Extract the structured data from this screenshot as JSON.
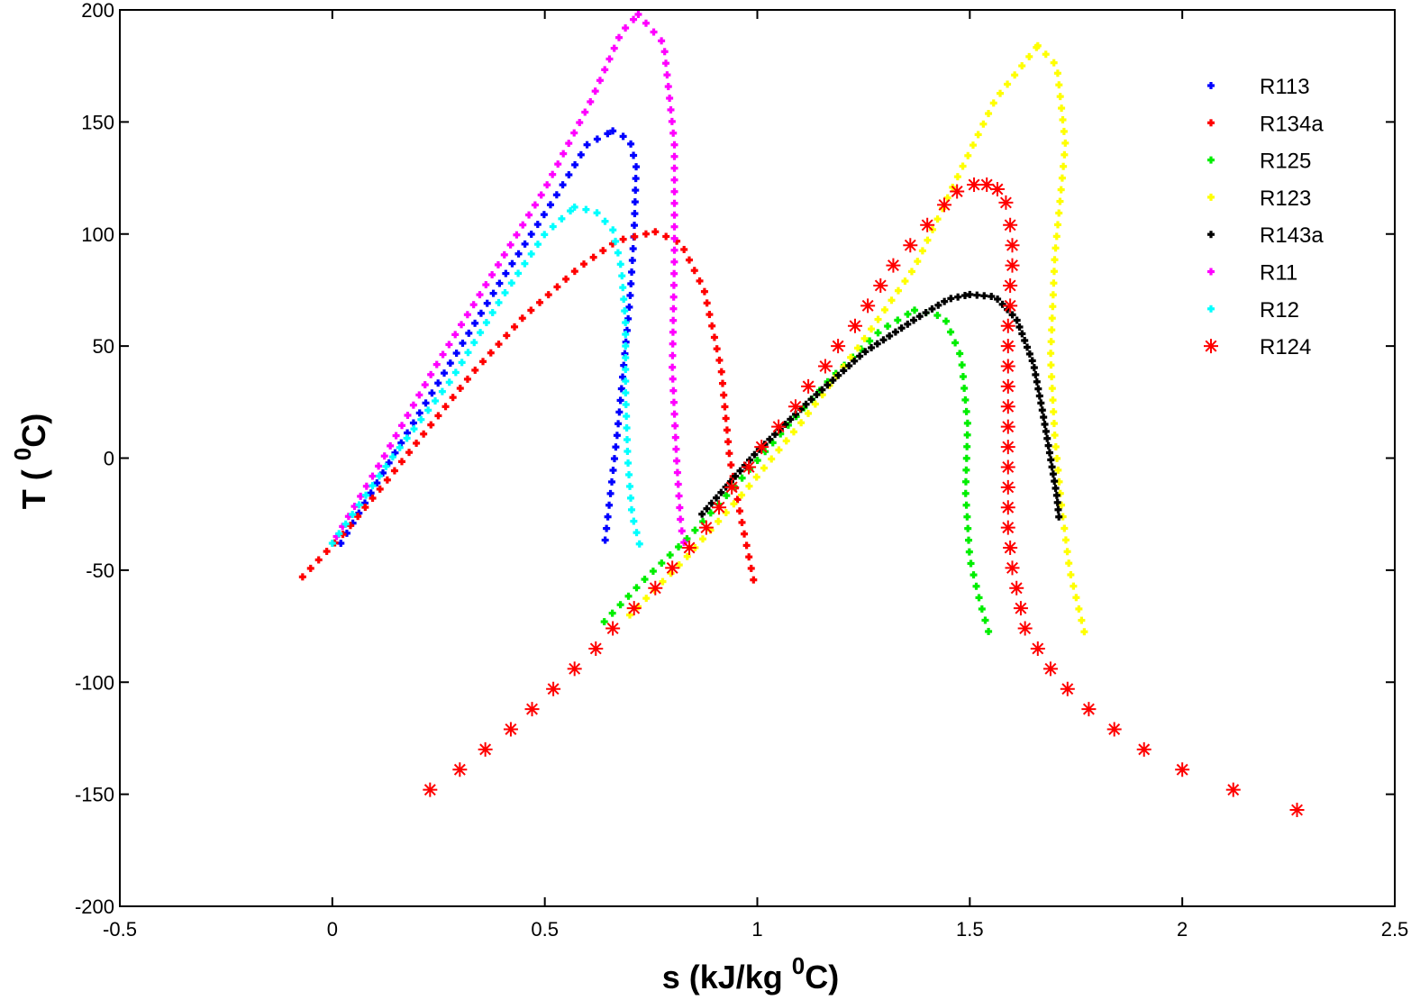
{
  "chart_data": {
    "type": "scatter",
    "title": "",
    "xlabel": "s (kJ/kg ⁰C)",
    "ylabel": "T ( ⁰C)",
    "xlabel_parts": {
      "pre": "s (kJ/kg ",
      "sup": "0",
      "post": "C)"
    },
    "ylabel_parts": {
      "pre": "T ( ",
      "sup": "0",
      "post": "C)"
    },
    "xlim": [
      -0.5,
      2.5
    ],
    "ylim": [
      -200,
      200
    ],
    "xticks": [
      -0.5,
      0,
      0.5,
      1,
      1.5,
      2,
      2.5
    ],
    "xtick_labels": [
      "-0.5",
      "0",
      "0.5",
      "1",
      "1.5",
      "2",
      "2.5"
    ],
    "yticks": [
      -200,
      -150,
      -100,
      -50,
      0,
      50,
      100,
      150,
      200
    ],
    "ytick_labels": [
      "-200",
      "-150",
      "-100",
      "-50",
      "0",
      "50",
      "100",
      "150",
      "200"
    ],
    "grid": false,
    "legend_position": "top-right",
    "series": [
      {
        "name": "R113",
        "color": "#0000ff",
        "marker": "dot",
        "liquid": [
          [
            0.02,
            -38
          ],
          [
            0.14,
            0
          ],
          [
            0.27,
            40
          ],
          [
            0.4,
            80
          ],
          [
            0.52,
            115
          ],
          [
            0.6,
            140
          ],
          [
            0.66,
            146
          ]
        ],
        "vapor": [
          [
            0.66,
            146
          ],
          [
            0.7,
            142
          ],
          [
            0.715,
            130
          ],
          [
            0.71,
            100
          ],
          [
            0.7,
            70
          ],
          [
            0.685,
            40
          ],
          [
            0.67,
            10
          ],
          [
            0.655,
            -15
          ],
          [
            0.64,
            -40
          ]
        ]
      },
      {
        "name": "R134a",
        "color": "#ff0000",
        "marker": "dot",
        "liquid": [
          [
            -0.07,
            -53
          ],
          [
            0.03,
            -33
          ],
          [
            0.12,
            -12
          ],
          [
            0.22,
            12
          ],
          [
            0.33,
            38
          ],
          [
            0.45,
            63
          ],
          [
            0.58,
            85
          ],
          [
            0.67,
            97
          ],
          [
            0.76,
            101
          ]
        ],
        "vapor": [
          [
            0.76,
            101
          ],
          [
            0.82,
            96
          ],
          [
            0.875,
            75
          ],
          [
            0.915,
            40
          ],
          [
            0.935,
            0
          ],
          [
            0.96,
            -25
          ],
          [
            0.995,
            -58
          ]
        ]
      },
      {
        "name": "R125",
        "color": "#00ee00",
        "marker": "dot",
        "liquid": [
          [
            0.64,
            -73
          ],
          [
            0.73,
            -55
          ],
          [
            0.84,
            -35
          ],
          [
            0.95,
            -12
          ],
          [
            1.06,
            12
          ],
          [
            1.17,
            35
          ],
          [
            1.29,
            57
          ],
          [
            1.37,
            66
          ]
        ],
        "vapor": [
          [
            1.37,
            66
          ],
          [
            1.44,
            63
          ],
          [
            1.48,
            45
          ],
          [
            1.495,
            15
          ],
          [
            1.49,
            -15
          ],
          [
            1.5,
            -45
          ],
          [
            1.525,
            -65
          ],
          [
            1.545,
            -78
          ]
        ]
      },
      {
        "name": "R123",
        "color": "#ffff00",
        "marker": "dot",
        "liquid": [
          [
            0.7,
            -70
          ],
          [
            0.83,
            -45
          ],
          [
            0.97,
            -15
          ],
          [
            1.1,
            15
          ],
          [
            1.24,
            50
          ],
          [
            1.37,
            85
          ],
          [
            1.47,
            125
          ],
          [
            1.56,
            160
          ],
          [
            1.66,
            184
          ]
        ],
        "vapor": [
          [
            1.66,
            184
          ],
          [
            1.705,
            175
          ],
          [
            1.725,
            140
          ],
          [
            1.7,
            90
          ],
          [
            1.69,
            45
          ],
          [
            1.7,
            10
          ],
          [
            1.715,
            -20
          ],
          [
            1.735,
            -50
          ],
          [
            1.775,
            -82
          ]
        ]
      },
      {
        "name": "R143a",
        "color": "#000000",
        "marker": "dot",
        "liquid": [
          [
            0.87,
            -25
          ],
          [
            1.0,
            3
          ],
          [
            1.12,
            25
          ],
          [
            1.25,
            47
          ],
          [
            1.38,
            63
          ],
          [
            1.45,
            71
          ],
          [
            1.5,
            73
          ]
        ],
        "vapor": [
          [
            1.5,
            73
          ],
          [
            1.56,
            72
          ],
          [
            1.61,
            62
          ],
          [
            1.65,
            42
          ],
          [
            1.672,
            20
          ],
          [
            1.69,
            0
          ],
          [
            1.705,
            -17
          ],
          [
            1.71,
            -27
          ]
        ]
      },
      {
        "name": "R11",
        "color": "#ff00ff",
        "marker": "dot",
        "liquid": [
          [
            0.01,
            -35
          ],
          [
            0.12,
            0
          ],
          [
            0.24,
            40
          ],
          [
            0.37,
            80
          ],
          [
            0.5,
            120
          ],
          [
            0.61,
            160
          ],
          [
            0.68,
            190
          ],
          [
            0.72,
            198
          ]
        ],
        "vapor": [
          [
            0.72,
            198
          ],
          [
            0.78,
            185
          ],
          [
            0.805,
            140
          ],
          [
            0.805,
            90
          ],
          [
            0.8,
            40
          ],
          [
            0.81,
            0
          ],
          [
            0.82,
            -30
          ],
          [
            0.83,
            -40
          ]
        ]
      },
      {
        "name": "R12",
        "color": "#00ffff",
        "marker": "dot",
        "liquid": [
          [
            0.0,
            -38
          ],
          [
            0.14,
            0
          ],
          [
            0.28,
            35
          ],
          [
            0.4,
            72
          ],
          [
            0.5,
            100
          ],
          [
            0.57,
            112
          ]
        ],
        "vapor": [
          [
            0.57,
            112
          ],
          [
            0.62,
            110
          ],
          [
            0.66,
            102
          ],
          [
            0.68,
            85
          ],
          [
            0.69,
            60
          ],
          [
            0.69,
            30
          ],
          [
            0.695,
            0
          ],
          [
            0.705,
            -25
          ],
          [
            0.725,
            -40
          ]
        ]
      },
      {
        "name": "R124",
        "color": "#ff0000",
        "marker": "star",
        "liquid": [
          [
            0.23,
            -148
          ],
          [
            0.3,
            -139
          ],
          [
            0.36,
            -130
          ],
          [
            0.42,
            -121
          ],
          [
            0.47,
            -112
          ],
          [
            0.52,
            -103
          ],
          [
            0.57,
            -94
          ],
          [
            0.62,
            -85
          ],
          [
            0.66,
            -76
          ],
          [
            0.71,
            -67
          ],
          [
            0.76,
            -58
          ],
          [
            0.8,
            -49
          ],
          [
            0.84,
            -40
          ],
          [
            0.88,
            -31
          ],
          [
            0.91,
            -22
          ],
          [
            0.94,
            -13
          ],
          [
            0.98,
            -4
          ],
          [
            1.01,
            5
          ],
          [
            1.05,
            14
          ],
          [
            1.09,
            23
          ],
          [
            1.12,
            32
          ],
          [
            1.16,
            41
          ],
          [
            1.19,
            50
          ],
          [
            1.23,
            59
          ],
          [
            1.26,
            68
          ],
          [
            1.29,
            77
          ],
          [
            1.32,
            86
          ],
          [
            1.36,
            95
          ],
          [
            1.4,
            104
          ],
          [
            1.44,
            113
          ],
          [
            1.47,
            119
          ],
          [
            1.51,
            122
          ]
        ],
        "vapor": [
          [
            1.51,
            122
          ],
          [
            1.54,
            122
          ],
          [
            1.565,
            120
          ],
          [
            1.585,
            114
          ],
          [
            1.595,
            104
          ],
          [
            1.6,
            95
          ],
          [
            1.6,
            86
          ],
          [
            1.595,
            77
          ],
          [
            1.595,
            68
          ],
          [
            1.59,
            59
          ],
          [
            1.59,
            50
          ],
          [
            1.59,
            41
          ],
          [
            1.59,
            32
          ],
          [
            1.59,
            23
          ],
          [
            1.59,
            14
          ],
          [
            1.59,
            5
          ],
          [
            1.59,
            -4
          ],
          [
            1.59,
            -13
          ],
          [
            1.59,
            -22
          ],
          [
            1.59,
            -31
          ],
          [
            1.595,
            -40
          ],
          [
            1.6,
            -49
          ],
          [
            1.61,
            -58
          ],
          [
            1.62,
            -67
          ],
          [
            1.63,
            -76
          ],
          [
            1.66,
            -85
          ],
          [
            1.69,
            -94
          ],
          [
            1.73,
            -103
          ],
          [
            1.78,
            -112
          ],
          [
            1.84,
            -121
          ],
          [
            1.91,
            -130
          ],
          [
            2.0,
            -139
          ],
          [
            2.12,
            -148
          ],
          [
            2.27,
            -157
          ]
        ]
      }
    ]
  }
}
